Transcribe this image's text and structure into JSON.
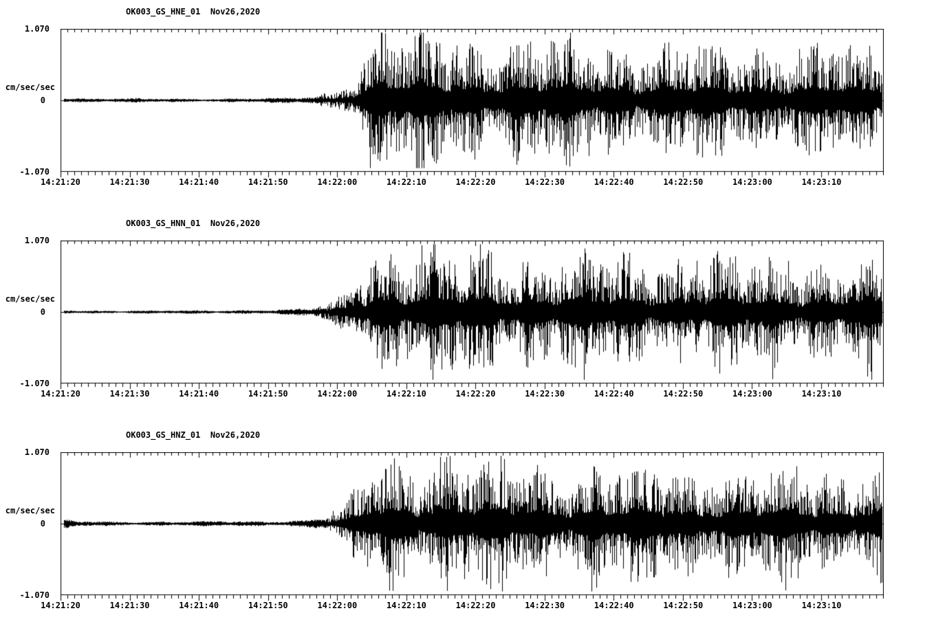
{
  "colors": {
    "background": "#ffffff",
    "trace": "#000000",
    "axis": "#000000",
    "text": "#000000"
  },
  "chart_data": [
    {
      "type": "line",
      "title": "OK003_GS_HNE_01  Nov26,2020",
      "station": "OK003",
      "channel": "HNE",
      "date": "Nov26,2020",
      "ylabel": "cm/sec/sec",
      "ylim": [
        -1.07,
        1.07
      ],
      "y_tick_labels": [
        "1.070",
        "0",
        "-1.070"
      ],
      "x_tick_labels": [
        "14:21:20",
        "14:21:30",
        "14:21:40",
        "14:21:50",
        "14:22:00",
        "14:22:10",
        "14:22:20",
        "14:22:30",
        "14:22:40",
        "14:22:50",
        "14:23:00",
        "14:23:10"
      ],
      "x_tick_interval_seconds": 10,
      "x_minor_tick_seconds": 1,
      "duration_seconds": 119,
      "grid": false,
      "legend": false,
      "seed": 11,
      "envelope": {
        "t_seconds": [
          0,
          2,
          5,
          10,
          15,
          20,
          25,
          30,
          33,
          35,
          37,
          39,
          41,
          43,
          45,
          47,
          50,
          53,
          56,
          60,
          64,
          68,
          72,
          76,
          80,
          85,
          90,
          95,
          100,
          105,
          110,
          115,
          119
        ],
        "amplitude_cm_s2": [
          0.05,
          0.03,
          0.025,
          0.025,
          0.025,
          0.025,
          0.025,
          0.03,
          0.035,
          0.04,
          0.06,
          0.1,
          0.18,
          0.38,
          0.75,
          0.88,
          0.8,
          0.78,
          0.82,
          0.74,
          0.78,
          0.7,
          0.74,
          0.68,
          0.72,
          0.66,
          0.7,
          0.64,
          0.68,
          0.62,
          0.66,
          0.62,
          0.65
        ]
      }
    },
    {
      "type": "line",
      "title": "OK003_GS_HNN_01  Nov26,2020",
      "station": "OK003",
      "channel": "HNN",
      "date": "Nov26,2020",
      "ylabel": "cm/sec/sec",
      "ylim": [
        -1.07,
        1.07
      ],
      "y_tick_labels": [
        "1.070",
        "0",
        "-1.070"
      ],
      "x_tick_labels": [
        "14:21:20",
        "14:21:30",
        "14:21:40",
        "14:21:50",
        "14:22:00",
        "14:22:10",
        "14:22:20",
        "14:22:30",
        "14:22:40",
        "14:22:50",
        "14:23:00",
        "14:23:10"
      ],
      "x_tick_interval_seconds": 10,
      "x_minor_tick_seconds": 1,
      "duration_seconds": 119,
      "grid": false,
      "legend": false,
      "seed": 22,
      "envelope": {
        "t_seconds": [
          0,
          2,
          5,
          10,
          15,
          20,
          25,
          30,
          33,
          35,
          37,
          39,
          41,
          43,
          45,
          47,
          50,
          53,
          56,
          60,
          64,
          68,
          72,
          76,
          80,
          85,
          90,
          95,
          100,
          105,
          110,
          115,
          119
        ],
        "amplitude_cm_s2": [
          0.04,
          0.025,
          0.02,
          0.02,
          0.02,
          0.022,
          0.025,
          0.03,
          0.035,
          0.045,
          0.07,
          0.12,
          0.22,
          0.45,
          0.85,
          0.8,
          0.75,
          0.8,
          0.72,
          0.76,
          0.7,
          0.73,
          0.67,
          0.7,
          0.65,
          0.68,
          0.63,
          0.66,
          0.62,
          0.65,
          0.6,
          0.63,
          0.62
        ]
      }
    },
    {
      "type": "line",
      "title": "OK003_GS_HNZ_01  Nov26,2020",
      "station": "OK003",
      "channel": "HNZ",
      "date": "Nov26,2020",
      "ylabel": "cm/sec/sec",
      "ylim": [
        -1.07,
        1.07
      ],
      "y_tick_labels": [
        "1.070",
        "0",
        "-1.070"
      ],
      "x_tick_labels": [
        "14:21:20",
        "14:21:30",
        "14:21:40",
        "14:21:50",
        "14:22:00",
        "14:22:10",
        "14:22:20",
        "14:22:30",
        "14:22:40",
        "14:22:50",
        "14:23:00",
        "14:23:10"
      ],
      "x_tick_interval_seconds": 10,
      "x_minor_tick_seconds": 1,
      "duration_seconds": 119,
      "grid": false,
      "legend": false,
      "seed": 33,
      "envelope": {
        "t_seconds": [
          0,
          2,
          5,
          10,
          15,
          20,
          25,
          30,
          33,
          35,
          37,
          39,
          41,
          43,
          45,
          47,
          50,
          53,
          56,
          60,
          64,
          68,
          72,
          76,
          80,
          85,
          90,
          95,
          100,
          105,
          110,
          115,
          119
        ],
        "amplitude_cm_s2": [
          0.06,
          0.04,
          0.03,
          0.028,
          0.028,
          0.03,
          0.032,
          0.035,
          0.04,
          0.05,
          0.07,
          0.11,
          0.2,
          0.4,
          0.7,
          0.85,
          0.78,
          0.8,
          0.74,
          0.78,
          0.72,
          0.75,
          0.7,
          0.72,
          0.68,
          0.7,
          0.66,
          0.68,
          0.64,
          0.66,
          0.63,
          0.65,
          0.64
        ]
      }
    }
  ]
}
